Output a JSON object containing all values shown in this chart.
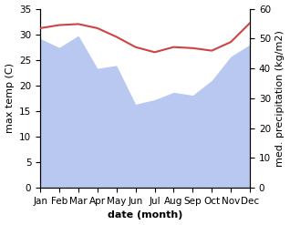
{
  "months": [
    "Jan",
    "Feb",
    "Mar",
    "Apr",
    "May",
    "Jun",
    "Jul",
    "Aug",
    "Sep",
    "Oct",
    "Nov",
    "Dec"
  ],
  "temp": [
    31.2,
    31.8,
    32.0,
    31.2,
    29.5,
    27.5,
    26.5,
    27.5,
    27.3,
    26.8,
    28.5,
    32.2
  ],
  "precip": [
    50.0,
    47.0,
    51.0,
    40.0,
    41.0,
    28.0,
    29.5,
    32.0,
    31.0,
    36.0,
    44.0,
    48.0
  ],
  "temp_color": "#cc4444",
  "precip_fill_color": "#b8c8f0",
  "temp_ylim": [
    0,
    35
  ],
  "precip_ylim": [
    0,
    60
  ],
  "xlabel": "date (month)",
  "ylabel_left": "max temp (C)",
  "ylabel_right": "med. precipitation (kg/m2)",
  "temp_yticks": [
    0,
    5,
    10,
    15,
    20,
    25,
    30,
    35
  ],
  "precip_yticks": [
    0,
    10,
    20,
    30,
    40,
    50,
    60
  ],
  "label_fontsize": 8,
  "tick_fontsize": 7.5
}
